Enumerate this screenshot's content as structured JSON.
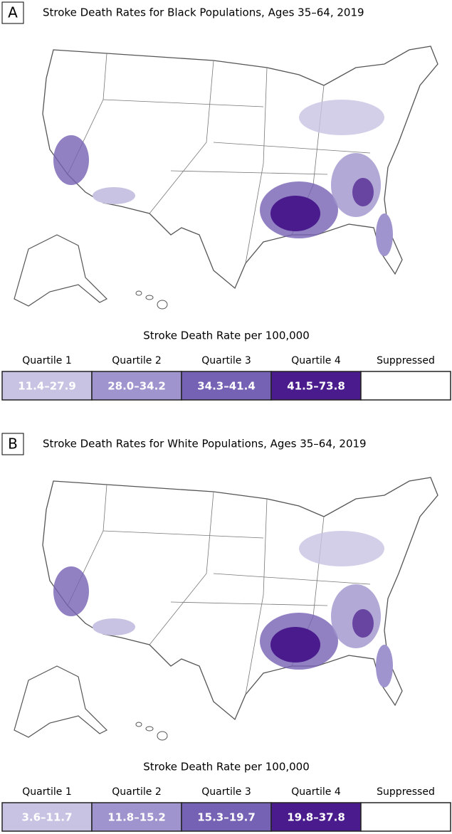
{
  "panels": [
    {
      "label": "A",
      "title": "Stroke Death Rates for Black Populations, Ages 35–64, 2019",
      "legend": {
        "title": "Stroke Death Rate per 100,000",
        "items": [
          {
            "name": "Quartile 1",
            "range": "11.4–27.9",
            "color": "#c9c3e3"
          },
          {
            "name": "Quartile 2",
            "range": "28.0–34.2",
            "color": "#9f94cd"
          },
          {
            "name": "Quartile 3",
            "range": "34.3–41.4",
            "color": "#7562b4"
          },
          {
            "name": "Quartile 4",
            "range": "41.5–73.8",
            "color": "#4a1b8c"
          },
          {
            "name": "Suppressed",
            "color": "#ffffff"
          }
        ]
      }
    },
    {
      "label": "B",
      "title": "Stroke Death Rates for White Populations, Ages 35–64, 2019",
      "legend": {
        "title": "Stroke Death Rate per 100,000",
        "items": [
          {
            "name": "Quartile 1",
            "range": "3.6–11.7",
            "color": "#c9c3e3"
          },
          {
            "name": "Quartile 2",
            "range": "11.8–15.2",
            "color": "#9f94cd"
          },
          {
            "name": "Quartile 3",
            "range": "15.3–19.7",
            "color": "#7562b4"
          },
          {
            "name": "Quartile 4",
            "range": "19.8–37.8",
            "color": "#4a1b8c"
          },
          {
            "name": "Suppressed",
            "color": "#ffffff"
          }
        ]
      }
    }
  ]
}
